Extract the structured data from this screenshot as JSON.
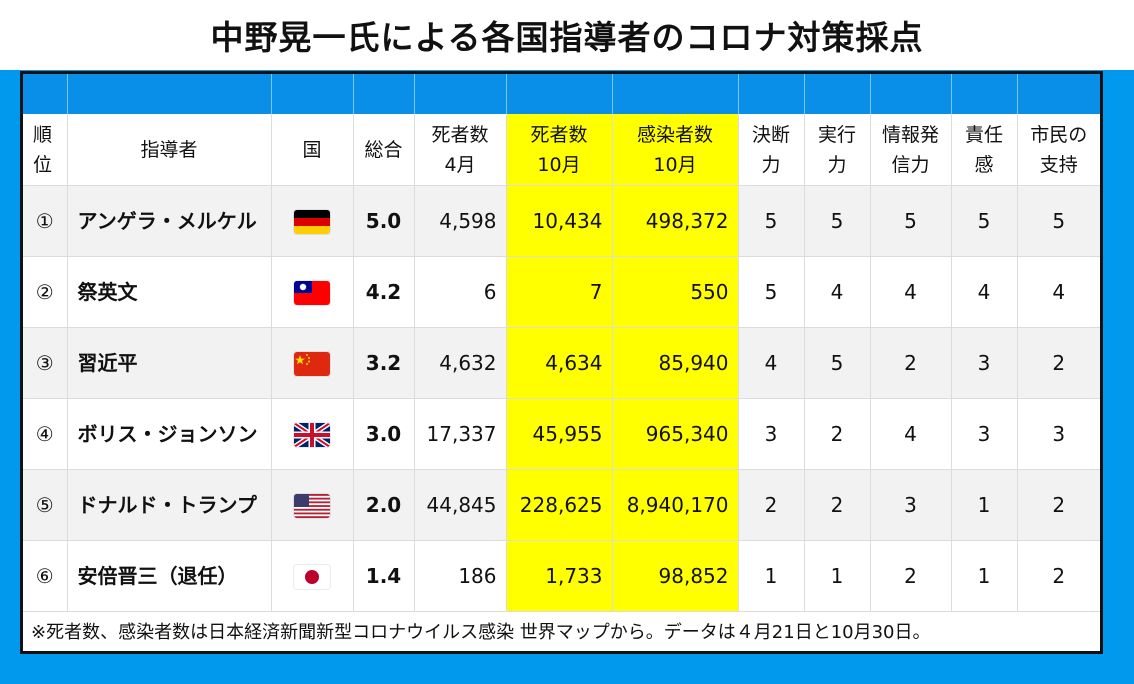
{
  "title": "中野晃一氏による各国指導者のコロナ対策採点",
  "colors": {
    "background": "#0099ee",
    "highlight": "#ffff00",
    "band": "#0a8fe9"
  },
  "headers": [
    "順\n位",
    "指導者",
    "国",
    "総合",
    "死者数\n4月",
    "死者数\n10月",
    "感染者数\n10月",
    "決断\n力",
    "実行\n力",
    "情報発\n信力",
    "責任\n感",
    "市民の\n支持"
  ],
  "rows": [
    {
      "rank": "①",
      "leader": "アンゲラ・メルケル",
      "flag": "germany-flag",
      "total": "5.0",
      "deaths_apr": "4,598",
      "deaths_oct": "10,434",
      "cases_oct": "498,372",
      "decision": "5",
      "execution": "5",
      "communication": "5",
      "responsibility": "5",
      "support": "5"
    },
    {
      "rank": "②",
      "leader": "祭英文",
      "flag": "taiwan-flag",
      "total": "4.2",
      "deaths_apr": "6",
      "deaths_oct": "7",
      "cases_oct": "550",
      "decision": "5",
      "execution": "4",
      "communication": "4",
      "responsibility": "4",
      "support": "4"
    },
    {
      "rank": "③",
      "leader": "習近平",
      "flag": "china-flag",
      "total": "3.2",
      "deaths_apr": "4,632",
      "deaths_oct": "4,634",
      "cases_oct": "85,940",
      "decision": "4",
      "execution": "5",
      "communication": "2",
      "responsibility": "3",
      "support": "2"
    },
    {
      "rank": "④",
      "leader": "ボリス・ジョンソン",
      "flag": "uk-flag",
      "total": "3.0",
      "deaths_apr": "17,337",
      "deaths_oct": "45,955",
      "cases_oct": "965,340",
      "decision": "3",
      "execution": "2",
      "communication": "4",
      "responsibility": "3",
      "support": "3"
    },
    {
      "rank": "⑤",
      "leader": "ドナルド・トランプ",
      "flag": "usa-flag",
      "total": "2.0",
      "deaths_apr": "44,845",
      "deaths_oct": "228,625",
      "cases_oct": "8,940,170",
      "decision": "2",
      "execution": "2",
      "communication": "3",
      "responsibility": "1",
      "support": "2"
    },
    {
      "rank": "⑥",
      "leader": "安倍晋三（退任）",
      "flag": "japan-flag",
      "total": "1.4",
      "deaths_apr": "186",
      "deaths_oct": "1,733",
      "cases_oct": "98,852",
      "decision": "1",
      "execution": "1",
      "communication": "2",
      "responsibility": "1",
      "support": "2"
    }
  ],
  "note": "※死者数、感染者数は日本経済新聞新型コロナウイルス感染 世界マップから。データは４月21日と10月30日。"
}
